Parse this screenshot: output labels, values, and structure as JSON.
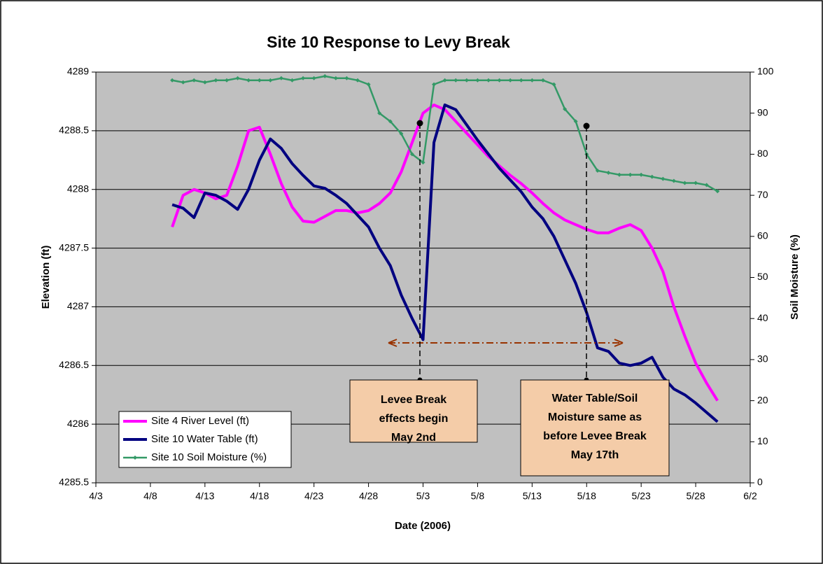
{
  "chart_data": {
    "type": "line",
    "title": "Site 10 Response to Levy Break",
    "x_label": "Date (2006)",
    "y_label": "Elevation (ft)",
    "y2_label": "Soil Moisture (%)",
    "x": [
      100,
      101,
      102,
      103,
      104,
      105,
      106,
      107,
      108,
      109,
      110,
      111,
      112,
      113,
      114,
      115,
      116,
      117,
      118,
      119,
      120,
      121,
      122,
      123,
      124,
      125,
      126,
      127,
      128,
      129,
      130,
      131,
      132,
      133,
      134,
      135,
      136,
      137,
      138,
      139,
      140,
      141,
      142,
      143,
      144,
      145,
      146,
      147,
      148,
      149,
      150
    ],
    "xlim": [
      93,
      153
    ],
    "xticks": [
      {
        "value": 93,
        "label": "4/3"
      },
      {
        "value": 98,
        "label": "4/8"
      },
      {
        "value": 103,
        "label": "4/13"
      },
      {
        "value": 108,
        "label": "4/18"
      },
      {
        "value": 113,
        "label": "4/23"
      },
      {
        "value": 118,
        "label": "4/28"
      },
      {
        "value": 123,
        "label": "5/3"
      },
      {
        "value": 128,
        "label": "5/8"
      },
      {
        "value": 133,
        "label": "5/13"
      },
      {
        "value": 138,
        "label": "5/18"
      },
      {
        "value": 143,
        "label": "5/23"
      },
      {
        "value": 148,
        "label": "5/28"
      },
      {
        "value": 153,
        "label": "6/2"
      }
    ],
    "ylim": [
      4285.5,
      4289
    ],
    "yticks": [
      4285.5,
      4286,
      4286.5,
      4287,
      4287.5,
      4288,
      4288.5,
      4289
    ],
    "y2lim": [
      0,
      100
    ],
    "y2ticks": [
      0,
      10,
      20,
      30,
      40,
      50,
      60,
      70,
      80,
      90,
      100
    ],
    "grid": true,
    "legend": "lower left",
    "series": [
      {
        "name": "Site 4 River Level (ft)",
        "color": "#ff00ff",
        "values": [
          4287.68,
          4287.95,
          4288.0,
          4287.97,
          4287.92,
          4287.95,
          4288.2,
          4288.5,
          4288.53,
          4288.3,
          4288.05,
          4287.85,
          4287.73,
          4287.72,
          4287.77,
          4287.82,
          4287.82,
          4287.8,
          4287.82,
          4287.88,
          4287.97,
          4288.15,
          4288.4,
          4288.65,
          4288.72,
          4288.68,
          4288.58,
          4288.48,
          4288.38,
          4288.28,
          4288.2,
          4288.12,
          4288.05,
          4287.97,
          4287.88,
          4287.8,
          4287.74,
          4287.7,
          4287.66,
          4287.63,
          4287.63,
          4287.67,
          4287.7,
          4287.65,
          4287.5,
          4287.3,
          4287.0,
          4286.75,
          4286.52,
          4286.35,
          4286.2
        ]
      },
      {
        "name": "Site 10 Water Table (ft)",
        "color": "#000080",
        "values": [
          4287.87,
          4287.84,
          4287.76,
          4287.97,
          4287.95,
          4287.9,
          4287.83,
          4288.0,
          4288.25,
          4288.43,
          4288.35,
          4288.22,
          4288.12,
          4288.03,
          4288.01,
          4287.95,
          4287.88,
          4287.78,
          4287.68,
          4287.5,
          4287.35,
          4287.1,
          4286.9,
          4286.72,
          4288.4,
          4288.72,
          4288.68,
          4288.55,
          4288.42,
          4288.3,
          4288.18,
          4288.08,
          4287.98,
          4287.85,
          4287.75,
          4287.6,
          4287.4,
          4287.2,
          4286.95,
          4286.65,
          4286.62,
          4286.52,
          4286.5,
          4286.52,
          4286.57,
          4286.4,
          4286.3,
          4286.25,
          4286.18,
          4286.1,
          4286.02
        ]
      },
      {
        "name": "Site 10 Soil Moisture (%)",
        "color": "#339966",
        "axis": "y2",
        "values": [
          98,
          97.5,
          98,
          97.5,
          98,
          98,
          98.5,
          98,
          98,
          98,
          98.5,
          98,
          98.5,
          98.5,
          99,
          98.5,
          98.5,
          98,
          97,
          90,
          88,
          85,
          80,
          78,
          97,
          98,
          98,
          98,
          98,
          98,
          98,
          98,
          98,
          98,
          98,
          97,
          91,
          88,
          80,
          76,
          75.5,
          75,
          75,
          75,
          74.5,
          74,
          73.5,
          73,
          73,
          72.5,
          71
        ]
      }
    ],
    "annotations": [
      {
        "lines": [
          "Levee Break",
          "effects begin",
          "May 2nd"
        ]
      },
      {
        "lines": [
          "Water Table/Soil",
          "Moisture same as",
          "before Levee Break",
          "May 17th"
        ]
      }
    ]
  }
}
